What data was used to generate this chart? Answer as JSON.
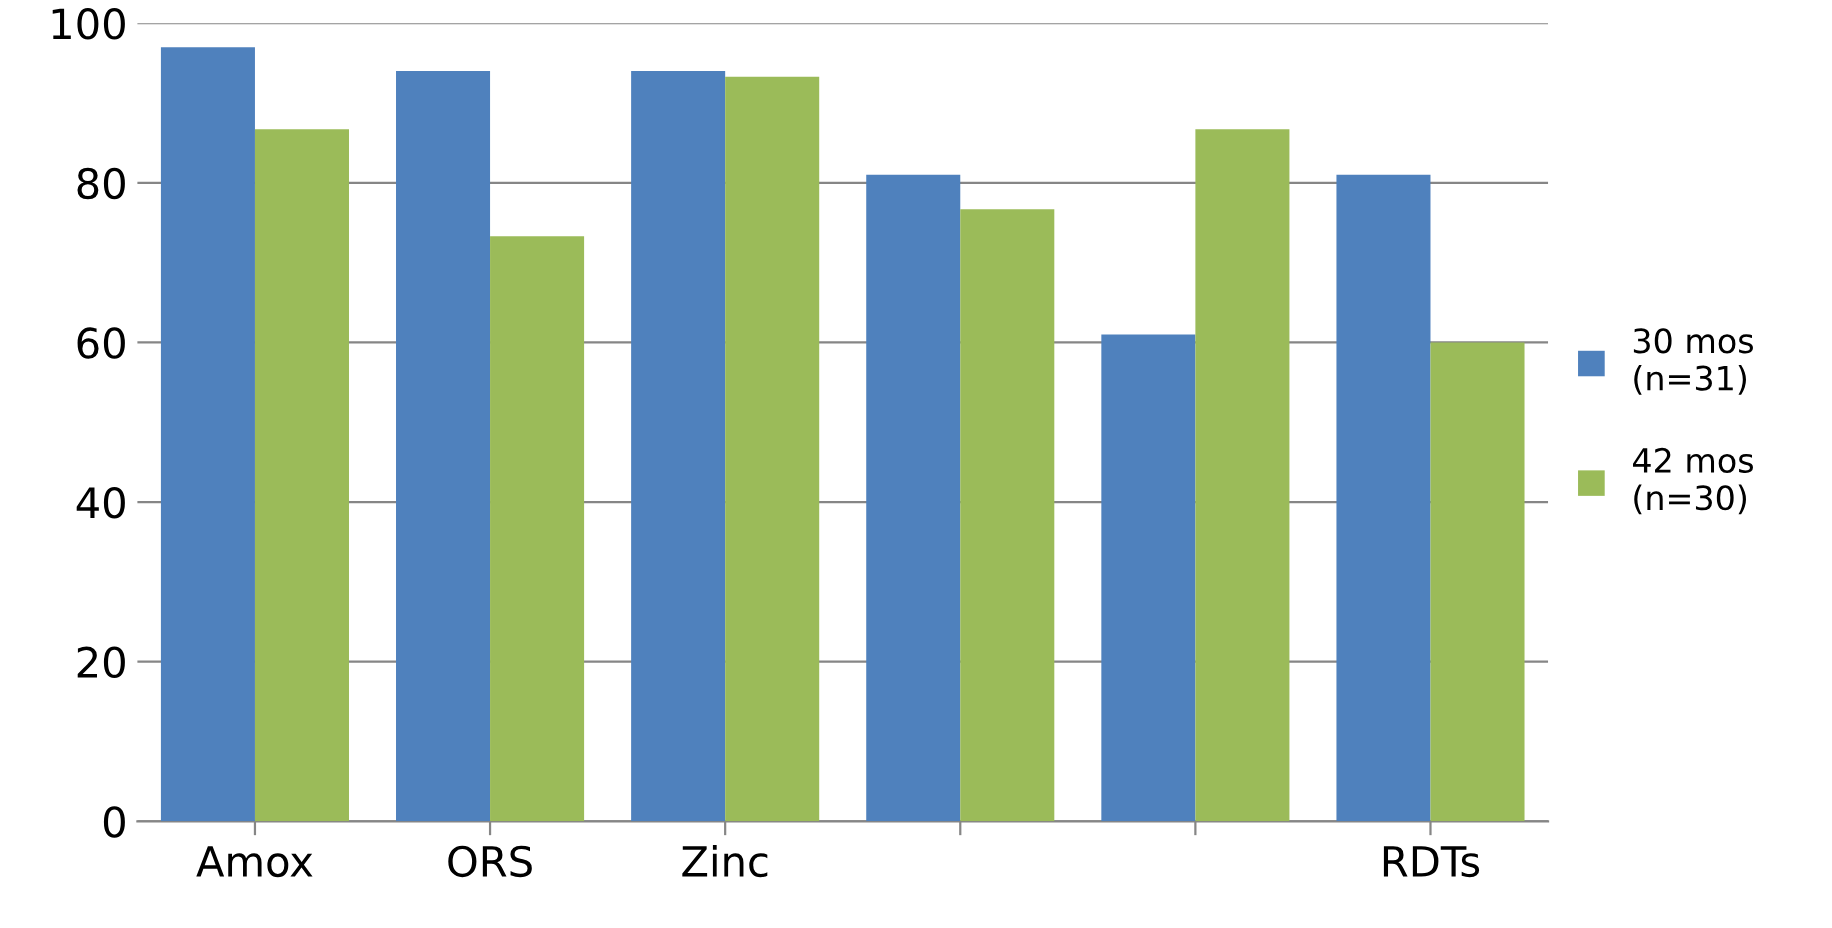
{
  "chart_data": {
    "type": "bar",
    "categories": [
      "Amox",
      "ORS",
      "Zinc",
      null,
      null,
      "RDTs"
    ],
    "series": [
      {
        "name": "30 mos\n(n=31)",
        "color": "#4f81bd",
        "values": [
          97,
          94,
          94,
          81,
          61,
          81
        ]
      },
      {
        "name": "42 mos\n(n=30)",
        "color": "#9bbb59",
        "values": [
          86.7,
          73.3,
          93.3,
          76.7,
          86.7,
          60
        ]
      }
    ],
    "ylim": [
      0,
      100
    ],
    "yticks": [
      0,
      20,
      40,
      60,
      80,
      100
    ],
    "grid": "y",
    "legend": "right"
  }
}
